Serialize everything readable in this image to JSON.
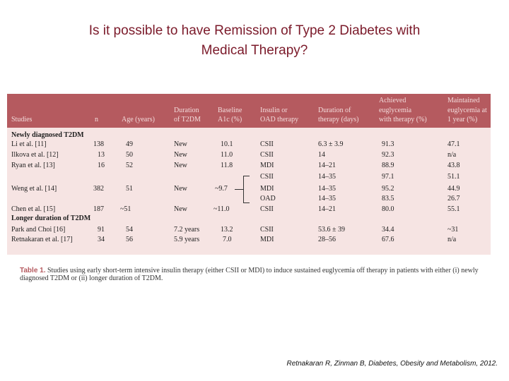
{
  "slide": {
    "title_line1": "Is it possible to have Remission of Type 2 Diabetes with",
    "title_line2": "Medical Therapy?",
    "citation": "Retnakaran R, Zinman B, Diabetes, Obesity and Metabolism, 2012."
  },
  "table": {
    "headers": {
      "studies": "Studies",
      "n": "n",
      "age": "Age (years)",
      "duration_1": "Duration",
      "duration_2": "of T2DM",
      "baseline_1": "Baseline",
      "baseline_2": "A1c (%)",
      "insulin_1": "Insulin or",
      "insulin_2": "OAD therapy",
      "therapy_dur_1": "Duration of",
      "therapy_dur_2": "therapy (days)",
      "achieved_1": "Achieved",
      "achieved_2": "euglycemia",
      "achieved_3": "with therapy (%)",
      "maintained_1": "Maintained",
      "maintained_2": "euglycemia at",
      "maintained_3": "1 year (%)"
    },
    "section_new": "Newly diagnosed T2DM",
    "section_longer": "Longer duration of T2DM",
    "rows": [
      {
        "study": "Li et al. [11]",
        "n": "138",
        "age": "49",
        "duration": "New",
        "a1c": "10.1",
        "therapy": "CSII",
        "days": "6.3 ± 3.9",
        "achieved": "91.3",
        "maintained": "47.1"
      },
      {
        "study": "Ilkova et al. [12]",
        "n": "13",
        "age": "50",
        "duration": "New",
        "a1c": "11.0",
        "therapy": "CSII",
        "days": "14",
        "achieved": "92.3",
        "maintained": "n/a"
      },
      {
        "study": "Ryan et al. [13]",
        "n": "16",
        "age": "52",
        "duration": "New",
        "a1c": "11.8",
        "therapy": "MDI",
        "days": "14–21",
        "achieved": "88.9",
        "maintained": "43.8"
      },
      {
        "study": "Weng et al. [14]",
        "n": "382",
        "age": "51",
        "duration": "New",
        "a1c": "~9.7",
        "therapy": "CSII",
        "days": "14–35",
        "achieved": "97.1",
        "maintained": "51.1"
      },
      {
        "therapy": "MDI",
        "days": "14–35",
        "achieved": "95.2",
        "maintained": "44.9"
      },
      {
        "therapy": "OAD",
        "days": "14–35",
        "achieved": "83.5",
        "maintained": "26.7"
      },
      {
        "study": "Chen et al. [15]",
        "n": "187",
        "age": "~51",
        "duration": "New",
        "a1c": "~11.0",
        "therapy": "CSII",
        "days": "14–21",
        "achieved": "80.0",
        "maintained": "55.1"
      },
      {
        "study": "Park and Choi [16]",
        "n": "91",
        "age": "54",
        "duration": "7.2 years",
        "a1c": "13.2",
        "therapy": "CSII",
        "days": "53.6 ± 39",
        "achieved": "34.4",
        "maintained": "~31"
      },
      {
        "study": "Retnakaran et al. [17]",
        "n": "34",
        "age": "56",
        "duration": "5.9 years",
        "a1c": "7.0",
        "therapy": "MDI",
        "days": "28–56",
        "achieved": "67.6",
        "maintained": "n/a"
      }
    ]
  },
  "caption": {
    "label": "Table 1.",
    "text": "Studies using early short-term intensive insulin therapy (either CSII or MDI) to induce sustained euglycemia off therapy in patients with either (i) newly diagnosed T2DM or (ii) longer duration of T2DM."
  }
}
